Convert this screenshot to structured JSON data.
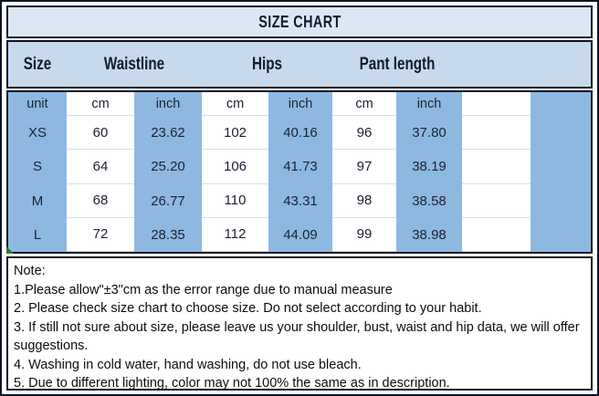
{
  "title": "SIZE CHART",
  "table": {
    "headers": {
      "size": "Size",
      "waistline": "Waistline",
      "hips": "Hips",
      "pant_length": "Pant length"
    },
    "unit_row": {
      "label": "unit",
      "waist_cm": "cm",
      "waist_in": "inch",
      "hips_cm": "cm",
      "hips_in": "inch",
      "len_cm": "cm",
      "len_in": "inch"
    },
    "rows": [
      {
        "size": "XS",
        "waist_cm": "60",
        "waist_in": "23.62",
        "hips_cm": "102",
        "hips_in": "40.16",
        "len_cm": "96",
        "len_in": "37.80"
      },
      {
        "size": "S",
        "waist_cm": "64",
        "waist_in": "25.20",
        "hips_cm": "106",
        "hips_in": "41.73",
        "len_cm": "97",
        "len_in": "38.19"
      },
      {
        "size": "M",
        "waist_cm": "68",
        "waist_in": "26.77",
        "hips_cm": "110",
        "hips_in": "43.31",
        "len_cm": "98",
        "len_in": "38.58"
      },
      {
        "size": "L",
        "waist_cm": "72",
        "waist_in": "28.35",
        "hips_cm": "112",
        "hips_in": "44.09",
        "len_cm": "99",
        "len_in": "38.98"
      }
    ]
  },
  "notes": {
    "label": "Note:",
    "items": [
      "1.Please allow\"±3\"cm as the error range due to manual measure",
      "2. Please check size chart to choose size. Do not select according to your habit.",
      "3. If still not sure about size, please leave us your shoulder, bust, waist and hip data, we will offer suggestions.",
      "4. Washing in cold water, hand washing, do not use bleach.",
      "5. Due to different lighting, color may not 100% the same as in description."
    ]
  },
  "chart_data": {
    "type": "table",
    "title": "SIZE CHART",
    "columns": [
      "Size",
      "Waistline cm",
      "Waistline inch",
      "Hips cm",
      "Hips inch",
      "Pant length cm",
      "Pant length inch"
    ],
    "rows": [
      [
        "XS",
        60,
        23.62,
        102,
        40.16,
        96,
        37.8
      ],
      [
        "S",
        64,
        25.2,
        106,
        41.73,
        97,
        38.19
      ],
      [
        "M",
        68,
        26.77,
        110,
        43.31,
        98,
        38.58
      ],
      [
        "L",
        72,
        28.35,
        112,
        44.09,
        99,
        38.98
      ]
    ]
  },
  "colors": {
    "title_bg": "#dbe8f4",
    "header_bg": "#c7d9eb",
    "column_blue": "#8fb8e0",
    "border": "#0c1426"
  }
}
